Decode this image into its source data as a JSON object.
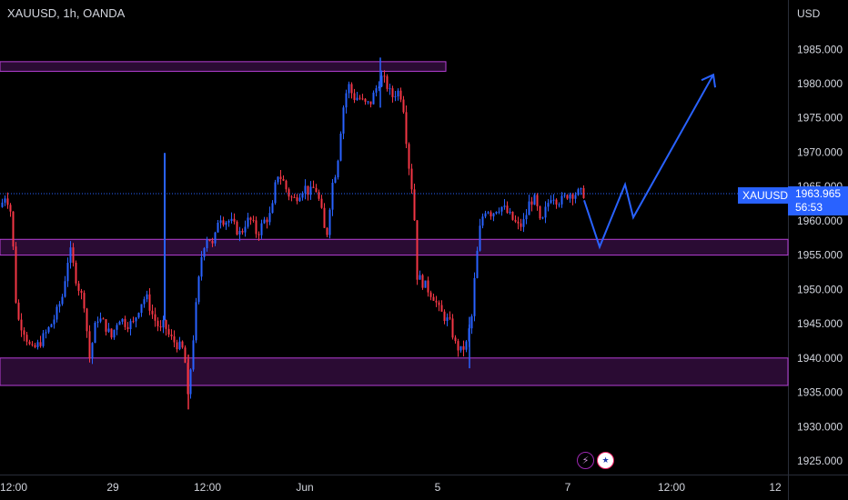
{
  "header": {
    "title": "XAUUSD, 1h, OANDA"
  },
  "axis": {
    "currency": "USD"
  },
  "badges": {
    "symbol": "XAUUSD",
    "price": "1963.965",
    "countdown": "56:53"
  },
  "icons": [
    "lightning-icon",
    "us-flag-icon"
  ],
  "colors": {
    "up": "#2962ff",
    "down": "#f23645",
    "zone_border": "#b63fd6",
    "zone_fill": "#2a0b33",
    "projection": "#2962ff"
  },
  "chart_data": {
    "type": "candlestick",
    "symbol": "XAUUSD",
    "timeframe": "1h",
    "ylim": [
      1922,
      1988
    ],
    "y_ticks": [
      1925,
      1930,
      1935,
      1940,
      1945,
      1950,
      1955,
      1960,
      1965,
      1970,
      1975,
      1980,
      1985
    ],
    "y_tick_labels": [
      "1925.000",
      "1930.000",
      "1935.000",
      "1940.000",
      "1945.000",
      "1950.000",
      "1955.000",
      "1960.000",
      "1965.000",
      "1970.000",
      "1975.000",
      "1980.000",
      "1985.000"
    ],
    "x_ticks": [
      "12:00",
      "29",
      "12:00",
      "Jun",
      "5",
      "7",
      "12:00",
      "12"
    ],
    "last_price": 1963.965,
    "zones": [
      {
        "low": 1981.8,
        "high": 1983.2,
        "t_end": 490
      },
      {
        "low": 1955.0,
        "high": 1957.3,
        "t_end": 866
      },
      {
        "low": 1936.0,
        "high": 1940.0,
        "t_end": 866
      }
    ],
    "projection": [
      [
        642,
        1963.0
      ],
      [
        659,
        1956.2
      ],
      [
        687,
        1965.3
      ],
      [
        696,
        1960.5
      ],
      [
        784,
        1981.3
      ]
    ],
    "price_path": [
      [
        0,
        1962
      ],
      [
        6,
        1964
      ],
      [
        12,
        1961
      ],
      [
        18,
        1946
      ],
      [
        26,
        1944
      ],
      [
        34,
        1941
      ],
      [
        42,
        1942
      ],
      [
        52,
        1944
      ],
      [
        60,
        1946
      ],
      [
        68,
        1949
      ],
      [
        76,
        1956
      ],
      [
        84,
        1951
      ],
      [
        92,
        1948
      ],
      [
        98,
        1940
      ],
      [
        106,
        1946
      ],
      [
        114,
        1945
      ],
      [
        122,
        1943
      ],
      [
        130,
        1946
      ],
      [
        138,
        1945
      ],
      [
        146,
        1945
      ],
      [
        154,
        1948
      ],
      [
        160,
        1949
      ],
      [
        168,
        1946
      ],
      [
        176,
        1944
      ],
      [
        180,
        1945
      ],
      [
        186,
        1943
      ],
      [
        194,
        1942
      ],
      [
        202,
        1941
      ],
      [
        206,
        1934
      ],
      [
        210,
        1940
      ],
      [
        216,
        1949
      ],
      [
        222,
        1956
      ],
      [
        228,
        1958
      ],
      [
        234,
        1956
      ],
      [
        240,
        1961
      ],
      [
        246,
        1960
      ],
      [
        252,
        1960
      ],
      [
        258,
        1959
      ],
      [
        264,
        1958
      ],
      [
        270,
        1960
      ],
      [
        276,
        1960
      ],
      [
        282,
        1958
      ],
      [
        290,
        1960
      ],
      [
        298,
        1961
      ],
      [
        304,
        1967
      ],
      [
        310,
        1966
      ],
      [
        316,
        1964
      ],
      [
        322,
        1963
      ],
      [
        328,
        1964
      ],
      [
        334,
        1965
      ],
      [
        340,
        1964
      ],
      [
        346,
        1965
      ],
      [
        352,
        1962
      ],
      [
        358,
        1957
      ],
      [
        364,
        1965
      ],
      [
        370,
        1968
      ],
      [
        376,
        1976
      ],
      [
        382,
        1980
      ],
      [
        388,
        1978
      ],
      [
        394,
        1978
      ],
      [
        400,
        1977
      ],
      [
        406,
        1977
      ],
      [
        412,
        1979
      ],
      [
        418,
        1981
      ],
      [
        424,
        1980
      ],
      [
        430,
        1978
      ],
      [
        436,
        1979
      ],
      [
        442,
        1978
      ],
      [
        448,
        1969
      ],
      [
        454,
        1963
      ],
      [
        458,
        1952
      ],
      [
        464,
        1951
      ],
      [
        470,
        1950
      ],
      [
        476,
        1949
      ],
      [
        482,
        1947
      ],
      [
        488,
        1946
      ],
      [
        494,
        1945
      ],
      [
        500,
        1942
      ],
      [
        506,
        1941
      ],
      [
        512,
        1942
      ],
      [
        518,
        1946
      ],
      [
        522,
        1953
      ],
      [
        528,
        1960
      ],
      [
        534,
        1962
      ],
      [
        540,
        1961
      ],
      [
        546,
        1962
      ],
      [
        552,
        1962
      ],
      [
        558,
        1961
      ],
      [
        564,
        1960
      ],
      [
        570,
        1959
      ],
      [
        576,
        1960
      ],
      [
        582,
        1963
      ],
      [
        588,
        1963
      ],
      [
        594,
        1959
      ],
      [
        600,
        1962
      ],
      [
        606,
        1964
      ],
      [
        612,
        1963
      ],
      [
        618,
        1963
      ],
      [
        624,
        1964
      ],
      [
        630,
        1964
      ],
      [
        636,
        1964
      ],
      [
        642,
        1964
      ]
    ]
  }
}
